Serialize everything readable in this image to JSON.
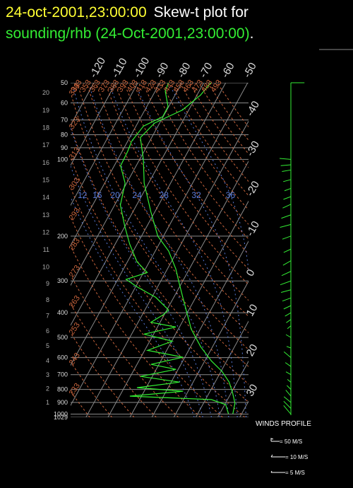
{
  "chart_data": {
    "type": "skewt",
    "title": [
      {
        "text": "24-oct-2001,23:00:00",
        "color": "#ffff33"
      },
      {
        "text": "Skew-t plot for",
        "color": "#ffffff"
      }
    ],
    "subtitle": [
      {
        "text": "sounding/rhb (24-Oct-2001,23:00:00)",
        "color": "#33ee33"
      },
      {
        "text": ".",
        "color": "#ffffff"
      }
    ],
    "ylim": [
      1029,
      50
    ],
    "yticks": [
      50,
      60,
      70,
      80,
      90,
      100,
      200,
      300,
      400,
      500,
      600,
      700,
      800,
      900,
      1000,
      1029
    ],
    "y2ticks": [
      1,
      2,
      3,
      4,
      5,
      6,
      7,
      8,
      9,
      10,
      11,
      12,
      13,
      14,
      15,
      16,
      17,
      18,
      19,
      20
    ],
    "xlim": [
      -47,
      34
    ],
    "xticks": [
      -120,
      -110,
      -100,
      -90,
      -80,
      -70,
      -60,
      -50,
      -40,
      -30,
      -20,
      -10,
      0,
      10,
      20,
      30
    ],
    "dry_adiabats": [
      223,
      233,
      243,
      253,
      263,
      273,
      283,
      293,
      303,
      313,
      323,
      333,
      343,
      353,
      363,
      373,
      383,
      393,
      403,
      413,
      423,
      433,
      443,
      453,
      463,
      473,
      483,
      493
    ],
    "dry_adiabat_color": "#c8643c",
    "moist_adiabats": [
      8,
      12,
      16,
      20,
      24,
      28,
      32,
      36
    ],
    "moist_adiabat_color": "#5a7ad8",
    "series": [
      {
        "color": "#33ee33",
        "pressure": [
          997,
          906,
          824,
          749,
          680,
          618,
          544,
          464,
          395,
          348,
          306,
          269,
          229,
          200,
          161,
          124,
          100,
          82,
          72,
          64,
          56,
          50
        ],
        "values": [
          26,
          24.3,
          20.6,
          16.4,
          10.5,
          3,
          -5.4,
          -14.1,
          -20.7,
          -25.9,
          -31.1,
          -36.2,
          -43.9,
          -52.6,
          -61.7,
          -72,
          -78.3,
          -85.2,
          -82.3,
          -72.9,
          -68.4,
          -66.8
        ]
      },
      {
        "color": "#33ee33",
        "pressure": [
          50,
          54,
          62,
          68,
          74,
          85,
          93,
          106,
          124,
          151,
          183,
          215,
          252,
          278,
          296,
          316,
          348,
          390,
          408,
          436,
          455,
          485,
          517,
          562,
          598,
          638,
          667,
          711,
          749,
          787,
          813,
          850,
          877,
          917,
          997
        ],
        "values": [
          -86.1,
          -85.4,
          -80.3,
          -80.2,
          -86.6,
          -88.2,
          -87.5,
          -87.1,
          -80.7,
          -77.4,
          -70.1,
          -63.4,
          -55.7,
          -48.3,
          -56.2,
          -49.5,
          -38.2,
          -29.2,
          -30.5,
          -34.2,
          -21.7,
          -34.4,
          -19.7,
          -28.7,
          -10.8,
          -23.6,
          -11,
          -25.4,
          -6.2,
          -24.2,
          -2.3,
          -25.3,
          12.7,
          20.4,
          24
        ]
      }
    ],
    "winds": {
      "color": "#33ee33",
      "pressure": [
        50,
        100,
        105,
        110,
        120,
        130,
        140,
        150,
        165,
        180,
        200,
        225,
        250,
        275,
        300,
        325,
        350,
        375,
        400,
        425,
        450,
        500,
        550,
        600,
        650,
        700,
        750,
        800,
        850,
        900,
        950,
        1000
      ],
      "speed": [
        12,
        10,
        9,
        8,
        7,
        6,
        7,
        8,
        9,
        10,
        8,
        7,
        8,
        9,
        10,
        9,
        8,
        7,
        6,
        5,
        4,
        5,
        4,
        8,
        6,
        5,
        4,
        5,
        7,
        8,
        9,
        10
      ],
      "direction": [
        90,
        275,
        265,
        260,
        255,
        250,
        250,
        245,
        250,
        255,
        250,
        245,
        240,
        245,
        250,
        255,
        250,
        245,
        240,
        235,
        230,
        300,
        290,
        310,
        305,
        300,
        310,
        315,
        320,
        310,
        315,
        320
      ]
    },
    "wind_legend": {
      "title": "WINDS PROFILE",
      "items": [
        "= 50 M/S",
        "= 10 M/S",
        "= 5 M/S"
      ]
    }
  }
}
